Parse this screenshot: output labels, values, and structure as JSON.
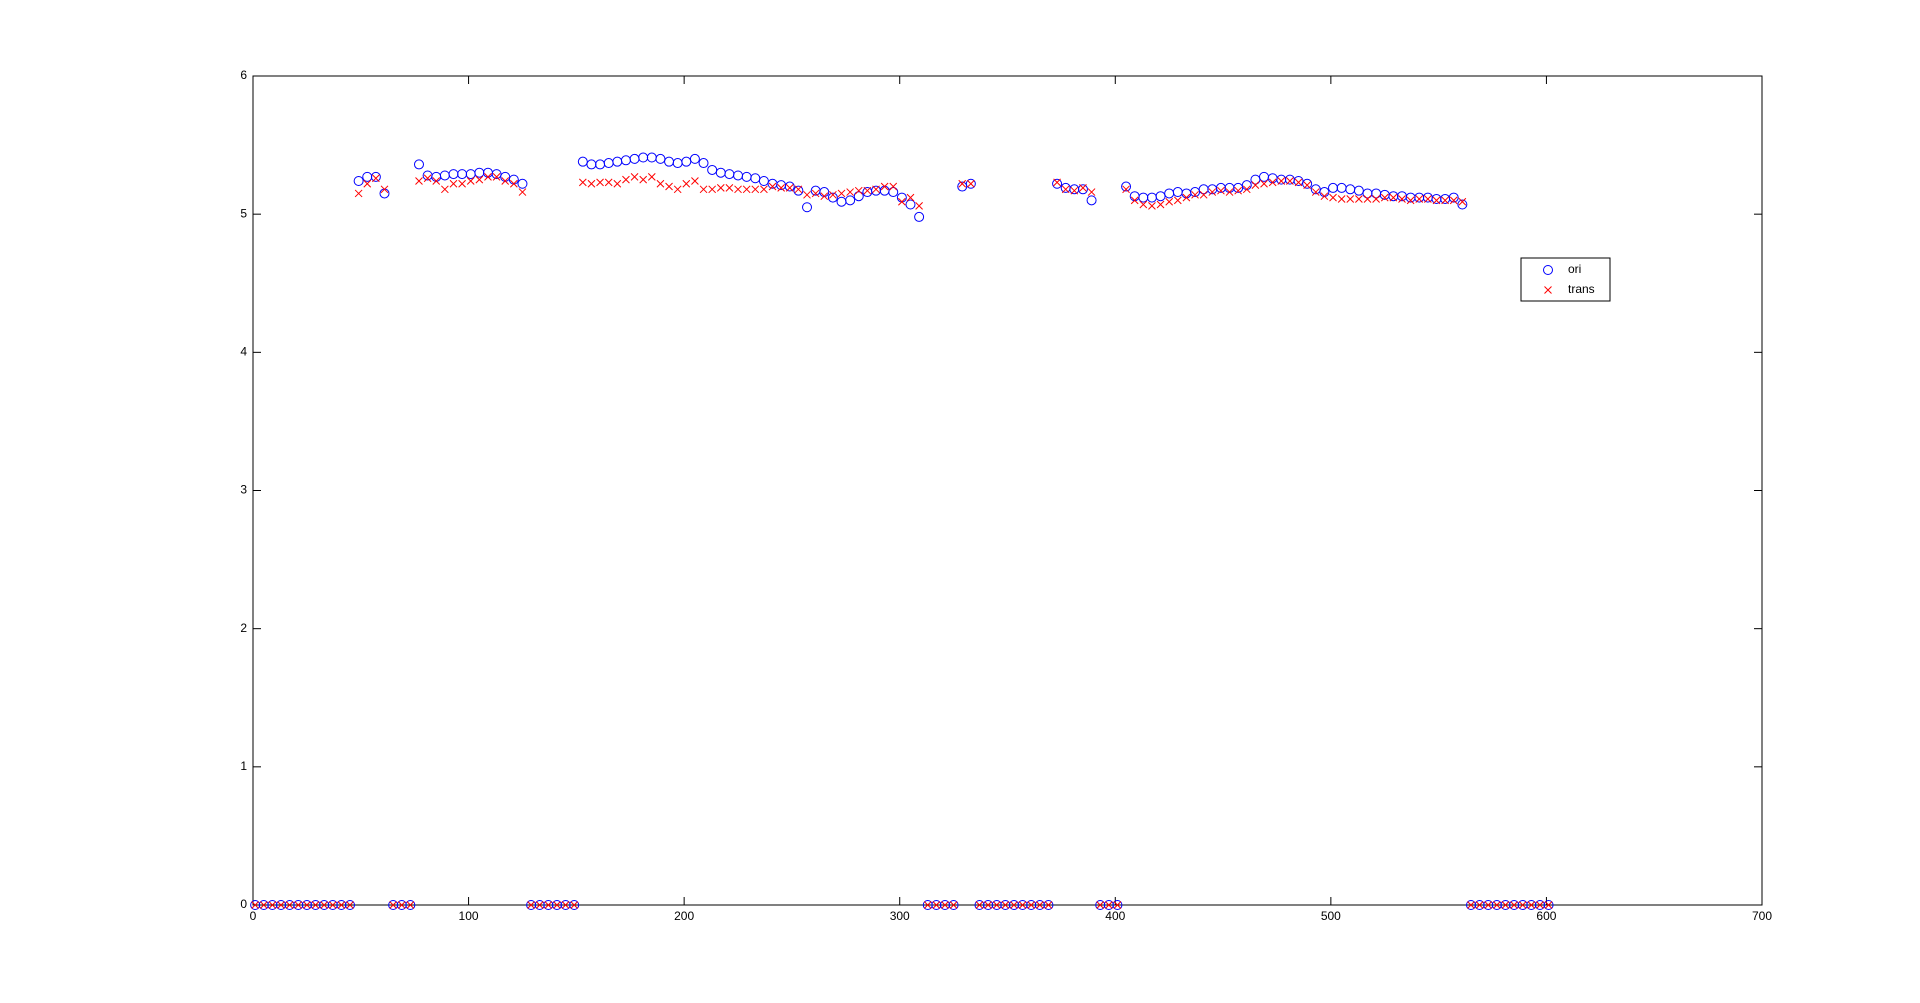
{
  "chart_data": {
    "type": "scatter",
    "x": [
      1,
      5,
      9,
      13,
      17,
      21,
      25,
      29,
      33,
      37,
      41,
      45,
      49,
      53,
      57,
      61,
      65,
      69,
      73,
      77,
      81,
      85,
      89,
      93,
      97,
      101,
      105,
      109,
      113,
      117,
      121,
      125,
      129,
      133,
      137,
      141,
      145,
      149,
      153,
      157,
      161,
      165,
      169,
      173,
      177,
      181,
      185,
      189,
      193,
      197,
      201,
      205,
      209,
      213,
      217,
      221,
      225,
      229,
      233,
      237,
      241,
      245,
      249,
      253,
      257,
      261,
      265,
      269,
      273,
      277,
      281,
      285,
      289,
      293,
      297,
      301,
      305,
      309,
      313,
      317,
      321,
      325,
      329,
      333,
      337,
      341,
      345,
      349,
      353,
      357,
      361,
      365,
      369,
      373,
      377,
      381,
      385,
      389,
      393,
      397,
      401,
      405,
      409,
      413,
      417,
      421,
      425,
      429,
      433,
      437,
      441,
      445,
      449,
      453,
      457,
      461,
      465,
      469,
      473,
      477,
      481,
      485,
      489,
      493,
      497,
      501,
      505,
      509,
      513,
      517,
      521,
      525,
      529,
      533,
      537,
      541,
      545,
      549,
      553,
      557,
      561,
      565,
      569,
      573,
      577,
      581,
      585,
      589,
      593,
      597,
      601
    ],
    "series": [
      {
        "name": "ori",
        "color": "#0000ff",
        "marker": "o",
        "values": [
          0,
          0,
          0,
          0,
          0,
          0,
          0,
          0,
          0,
          0,
          0,
          0,
          5.24,
          5.27,
          5.27,
          5.15,
          0,
          0,
          0,
          5.36,
          5.28,
          5.27,
          5.28,
          5.29,
          5.29,
          5.29,
          5.3,
          5.3,
          5.29,
          5.27,
          5.25,
          5.22,
          0,
          0,
          0,
          0,
          0,
          0,
          5.38,
          5.36,
          5.36,
          5.37,
          5.38,
          5.39,
          5.4,
          5.41,
          5.41,
          5.4,
          5.38,
          5.37,
          5.38,
          5.4,
          5.37,
          5.32,
          5.3,
          5.29,
          5.28,
          5.27,
          5.26,
          5.24,
          5.22,
          5.21,
          5.2,
          5.17,
          5.05,
          5.17,
          5.16,
          5.12,
          5.09,
          5.1,
          5.13,
          5.16,
          5.17,
          5.17,
          5.16,
          5.12,
          5.07,
          4.98,
          0,
          0,
          0,
          0,
          5.2,
          5.22,
          0,
          0,
          0,
          0,
          0,
          0,
          0,
          0,
          0,
          5.22,
          5.19,
          5.18,
          5.18,
          5.1,
          0,
          0,
          0,
          5.2,
          5.13,
          5.12,
          5.12,
          5.13,
          5.15,
          5.16,
          5.15,
          5.16,
          5.18,
          5.18,
          5.19,
          5.19,
          5.19,
          5.21,
          5.25,
          5.27,
          5.26,
          5.25,
          5.25,
          5.24,
          5.22,
          5.18,
          5.16,
          5.19,
          5.19,
          5.18,
          5.17,
          5.15,
          5.15,
          5.14,
          5.13,
          5.13,
          5.12,
          5.12,
          5.12,
          5.11,
          5.11,
          5.12,
          5.07,
          0,
          0,
          0,
          0,
          0,
          0,
          0,
          0,
          0,
          0
        ]
      },
      {
        "name": "trans",
        "color": "#ff0000",
        "marker": "x",
        "values": [
          0,
          0,
          0,
          0,
          0,
          0,
          0,
          0,
          0,
          0,
          0,
          0,
          5.15,
          5.22,
          5.26,
          5.18,
          0,
          0,
          0,
          5.24,
          5.26,
          5.24,
          5.18,
          5.22,
          5.22,
          5.24,
          5.25,
          5.27,
          5.27,
          5.24,
          5.22,
          5.16,
          0,
          0,
          0,
          0,
          0,
          0,
          5.23,
          5.22,
          5.23,
          5.23,
          5.22,
          5.25,
          5.27,
          5.25,
          5.27,
          5.22,
          5.2,
          5.18,
          5.22,
          5.24,
          5.18,
          5.18,
          5.19,
          5.19,
          5.18,
          5.18,
          5.18,
          5.18,
          5.2,
          5.19,
          5.19,
          5.18,
          5.14,
          5.15,
          5.13,
          5.14,
          5.15,
          5.16,
          5.17,
          5.17,
          5.18,
          5.2,
          5.2,
          5.09,
          5.12,
          5.06,
          0,
          0,
          0,
          0,
          5.22,
          5.22,
          0,
          0,
          0,
          0,
          0,
          0,
          0,
          0,
          0,
          5.23,
          5.18,
          5.17,
          5.19,
          5.16,
          0,
          0,
          0,
          5.18,
          5.1,
          5.07,
          5.06,
          5.07,
          5.09,
          5.1,
          5.12,
          5.14,
          5.14,
          5.16,
          5.17,
          5.16,
          5.17,
          5.18,
          5.21,
          5.22,
          5.23,
          5.24,
          5.24,
          5.23,
          5.21,
          5.16,
          5.13,
          5.12,
          5.11,
          5.11,
          5.11,
          5.11,
          5.11,
          5.12,
          5.12,
          5.11,
          5.1,
          5.11,
          5.11,
          5.1,
          5.1,
          5.1,
          5.09,
          0,
          0,
          0,
          0,
          0,
          0,
          0,
          0,
          0,
          0
        ]
      }
    ],
    "xlim": [
      0,
      700
    ],
    "xticks": [
      0,
      100,
      200,
      300,
      400,
      500,
      600,
      700
    ],
    "ylim": [
      0,
      6
    ],
    "yticks": [
      0,
      1,
      2,
      3,
      4,
      5,
      6
    ]
  }
}
